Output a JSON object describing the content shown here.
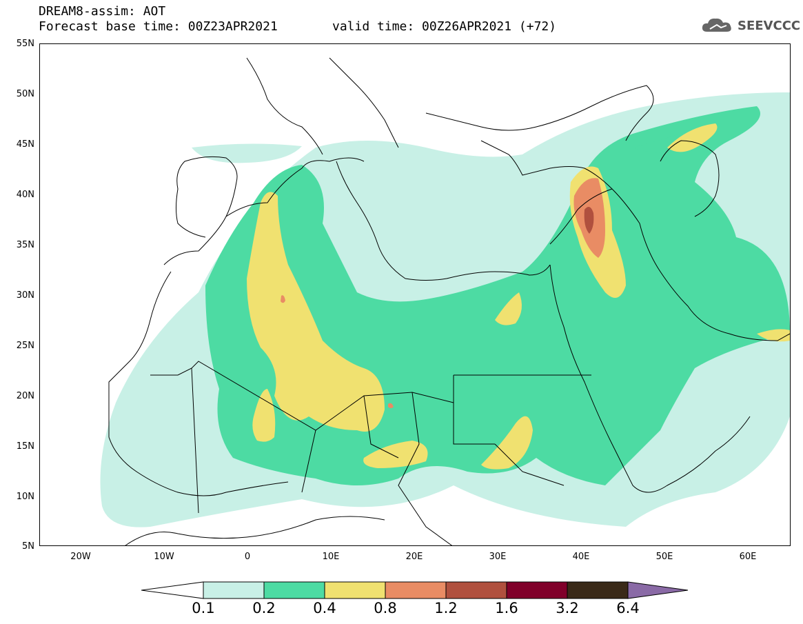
{
  "header": {
    "line1": "DREAM8-assim: AOT",
    "base_time": "Forecast base time: 00Z23APR2021",
    "valid_time": "valid time: 00Z26APR2021 (+72)"
  },
  "logo": {
    "text": "SEEVCCC",
    "icon": "cloud-icon"
  },
  "map": {
    "lat_labels": [
      "55N",
      "50N",
      "45N",
      "40N",
      "35N",
      "30N",
      "25N",
      "20N",
      "15N",
      "10N",
      "5N"
    ],
    "lon_labels": [
      "20W",
      "10W",
      "0",
      "10E",
      "20E",
      "30E",
      "40E",
      "50E",
      "60E"
    ]
  },
  "colorbar": {
    "levels": [
      "0.1",
      "0.2",
      "0.4",
      "0.8",
      "1.2",
      "1.6",
      "3.2",
      "6.4"
    ],
    "colors": [
      "#c8f0e6",
      "#4ddba3",
      "#f0e170",
      "#e98c64",
      "#b0503e",
      "#80002a",
      "#3a2a18",
      "#8a6aa6"
    ]
  }
}
